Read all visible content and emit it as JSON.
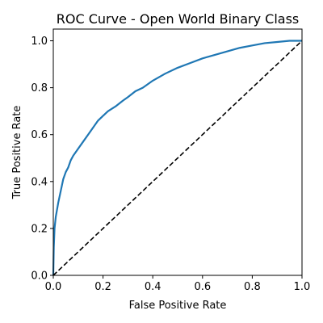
{
  "chart_data": {
    "type": "line",
    "title": "ROC Curve - Open World Binary Class",
    "xlabel": "False Positive Rate",
    "ylabel": "True Positive Rate",
    "xlim": [
      0.0,
      1.0
    ],
    "ylim": [
      0.0,
      1.05
    ],
    "xticks": [
      0.0,
      0.2,
      0.4,
      0.6,
      0.8,
      1.0
    ],
    "yticks": [
      0.0,
      0.2,
      0.4,
      0.6,
      0.8,
      1.0
    ],
    "xtick_labels": [
      "0.0",
      "0.2",
      "0.4",
      "0.6",
      "0.8",
      "1.0"
    ],
    "ytick_labels": [
      "0.0",
      "0.2",
      "0.4",
      "0.6",
      "0.8",
      "1.0"
    ],
    "grid": false,
    "series": [
      {
        "color": "#1f77b4",
        "style": "solid",
        "x": [
          0.0,
          0.002,
          0.005,
          0.01,
          0.015,
          0.02,
          0.03,
          0.04,
          0.05,
          0.06,
          0.07,
          0.08,
          0.1,
          0.12,
          0.14,
          0.16,
          0.18,
          0.2,
          0.22,
          0.25,
          0.28,
          0.3,
          0.33,
          0.36,
          0.4,
          0.45,
          0.5,
          0.55,
          0.6,
          0.65,
          0.7,
          0.75,
          0.8,
          0.85,
          0.9,
          0.95,
          1.0
        ],
        "y": [
          0.0,
          0.12,
          0.2,
          0.25,
          0.28,
          0.31,
          0.36,
          0.41,
          0.44,
          0.46,
          0.49,
          0.51,
          0.54,
          0.57,
          0.6,
          0.63,
          0.66,
          0.68,
          0.7,
          0.72,
          0.745,
          0.76,
          0.785,
          0.8,
          0.83,
          0.86,
          0.885,
          0.905,
          0.925,
          0.94,
          0.955,
          0.97,
          0.98,
          0.99,
          0.995,
          1.0,
          1.0
        ]
      },
      {
        "color": "#000000",
        "style": "dashed",
        "x": [
          0.0,
          1.0
        ],
        "y": [
          0.0,
          1.0
        ]
      }
    ]
  }
}
